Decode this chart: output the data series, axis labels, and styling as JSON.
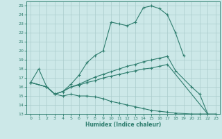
{
  "title": "",
  "xlabel": "Humidex (Indice chaleur)",
  "bg_color": "#cce8e8",
  "line_color": "#2e7d6e",
  "grid_color": "#aacccc",
  "xlim": [
    -0.5,
    23.5
  ],
  "ylim": [
    13,
    25.5
  ],
  "xticks": [
    0,
    1,
    2,
    3,
    4,
    5,
    6,
    7,
    8,
    9,
    10,
    11,
    12,
    13,
    14,
    15,
    16,
    17,
    18,
    19,
    20,
    21,
    22,
    23
  ],
  "yticks": [
    13,
    14,
    15,
    16,
    17,
    18,
    19,
    20,
    21,
    22,
    23,
    24,
    25
  ],
  "c1x": [
    0,
    1,
    2,
    3,
    4,
    5,
    6,
    7,
    8,
    9,
    10,
    11,
    12,
    13,
    14,
    15,
    16,
    17,
    18,
    19
  ],
  "c1y": [
    16.5,
    18.0,
    16.0,
    15.2,
    15.5,
    16.3,
    17.3,
    18.7,
    19.5,
    20.0,
    23.2,
    23.0,
    22.8,
    23.2,
    24.8,
    25.0,
    24.7,
    24.0,
    22.0,
    19.5
  ],
  "c2x": [
    0,
    2,
    3,
    4,
    5,
    6,
    7,
    8,
    9,
    10,
    11,
    12,
    13,
    14,
    15,
    16,
    17,
    18,
    20,
    21,
    22
  ],
  "c2y": [
    16.5,
    16.0,
    15.2,
    15.5,
    16.0,
    16.3,
    16.7,
    17.1,
    17.4,
    17.7,
    18.0,
    18.3,
    18.5,
    18.8,
    19.0,
    19.2,
    19.4,
    17.8,
    16.0,
    15.2,
    13.0
  ],
  "c3x": [
    0,
    2,
    3,
    4,
    5,
    6,
    7,
    8,
    9,
    10,
    11,
    12,
    13,
    14,
    15,
    16,
    17,
    22
  ],
  "c3y": [
    16.5,
    16.0,
    15.2,
    15.5,
    16.0,
    16.2,
    16.5,
    16.7,
    17.0,
    17.2,
    17.4,
    17.6,
    17.8,
    18.0,
    18.1,
    18.3,
    18.5,
    13.0
  ],
  "c4x": [
    0,
    2,
    3,
    4,
    5,
    6,
    7,
    8,
    9,
    10,
    11,
    12,
    13,
    14,
    15,
    16,
    17,
    18,
    20,
    21,
    22,
    23
  ],
  "c4y": [
    16.5,
    16.0,
    15.2,
    15.0,
    15.2,
    15.0,
    15.0,
    14.9,
    14.7,
    14.4,
    14.2,
    14.0,
    13.8,
    13.6,
    13.4,
    13.3,
    13.2,
    13.1,
    13.0,
    13.0,
    13.0,
    13.0
  ]
}
